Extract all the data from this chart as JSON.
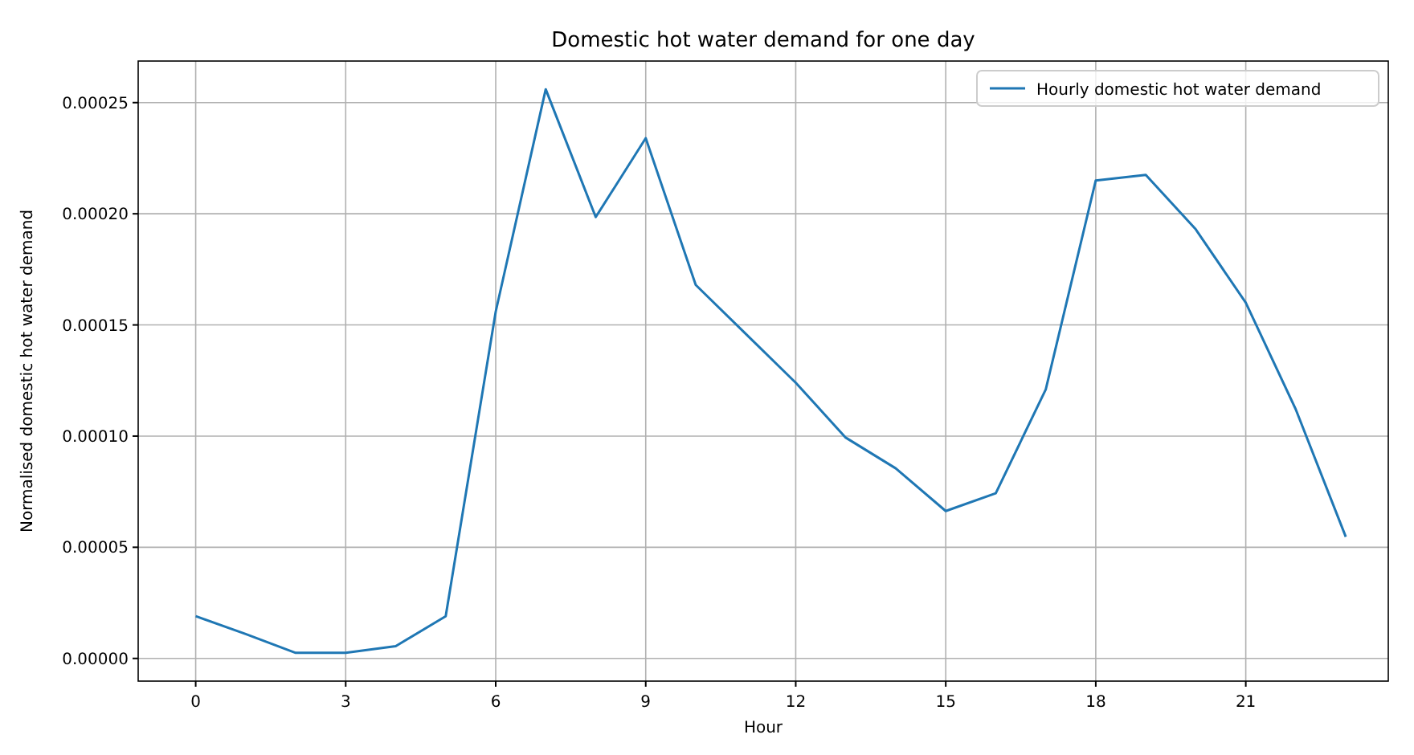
{
  "chart_data": {
    "type": "line",
    "title": "Domestic hot water demand for one day",
    "xlabel": "Hour",
    "ylabel": "Normalised domestic hot water demand",
    "x": [
      0,
      1,
      2,
      3,
      4,
      5,
      6,
      7,
      8,
      9,
      10,
      11,
      12,
      13,
      14,
      15,
      16,
      17,
      18,
      19,
      20,
      21,
      22,
      23
    ],
    "series": [
      {
        "name": "Hourly domestic hot water demand",
        "color": "#1f77b4",
        "values": [
          1.9e-05,
          1.1e-05,
          2.5e-06,
          2.5e-06,
          5.5e-06,
          1.9e-05,
          0.000156,
          0.000256,
          0.0001985,
          0.000234,
          0.000168,
          0.000146,
          0.000124,
          9.93e-05,
          8.55e-05,
          6.63e-05,
          7.43e-05,
          0.000121,
          0.000215,
          0.0002175,
          0.000193,
          0.00016,
          0.000112,
          5.47e-05
        ]
      }
    ],
    "xlim": [
      -1.15,
      23.85
    ],
    "xticks": [
      0,
      3,
      6,
      9,
      12,
      15,
      18,
      21
    ],
    "ylim": [
      -1.02e-05,
      0.0002687
    ],
    "yticks": [
      {
        "value": 0,
        "label": "0.00000"
      },
      {
        "value": 5e-05,
        "label": "0.00005"
      },
      {
        "value": 0.0001,
        "label": "0.00010"
      },
      {
        "value": 0.00015,
        "label": "0.00015"
      },
      {
        "value": 0.0002,
        "label": "0.00020"
      },
      {
        "value": 0.00025,
        "label": "0.00025"
      }
    ],
    "grid": true,
    "legend": "top right",
    "marker": "none",
    "line_style": "solid"
  }
}
